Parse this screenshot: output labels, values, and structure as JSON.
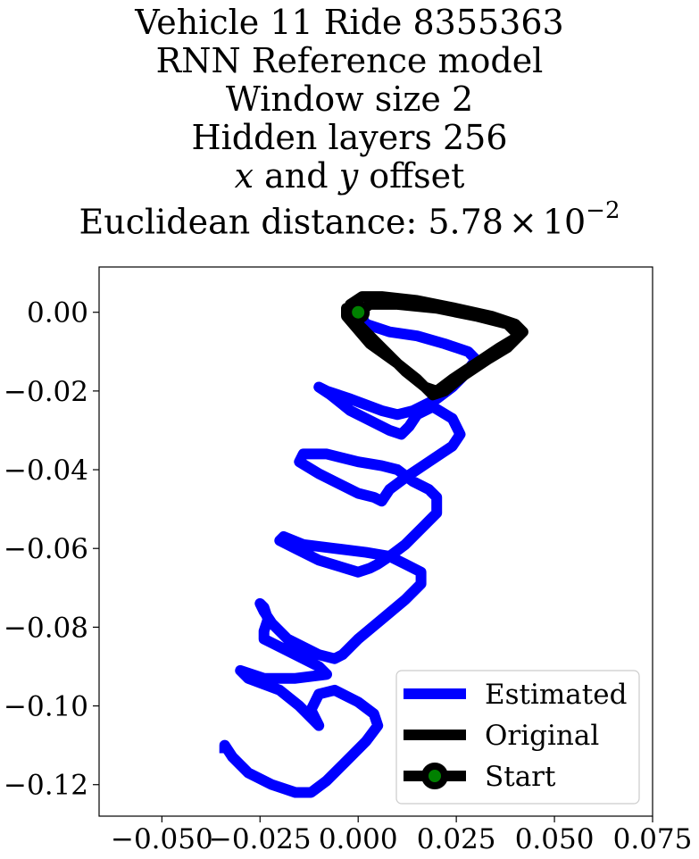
{
  "chart_data": {
    "type": "line",
    "title_lines": [
      "Vehicle 11 Ride 8355363",
      "RNN Reference model",
      "Window size 2",
      "Hidden layers 256"
    ],
    "title_offset": {
      "x": "x",
      "and": " and ",
      "y": "y",
      "suffix": " offset"
    },
    "title_distance": {
      "prefix": "Euclidean distance: ",
      "mantissa": "5.78",
      "times": "×",
      "base": "10",
      "exponent": "−2"
    },
    "xlim": [
      -0.066,
      0.075
    ],
    "ylim": [
      -0.128,
      0.0115
    ],
    "xticks": [
      -0.05,
      -0.025,
      0.0,
      0.025,
      0.05,
      0.075
    ],
    "xtick_labels": [
      "−0.050",
      "−0.025",
      "0.000",
      "0.025",
      "0.050",
      "0.075"
    ],
    "yticks": [
      0.0,
      -0.02,
      -0.04,
      -0.06,
      -0.08,
      -0.1,
      -0.12
    ],
    "ytick_labels": [
      "0.00",
      "−0.02",
      "−0.04",
      "−0.06",
      "−0.08",
      "−0.10",
      "−0.12"
    ],
    "grid": false,
    "legend_placement": "bottom-right",
    "series": [
      {
        "name": "Estimated",
        "color": "#0000ff",
        "points": [
          [
            0.0,
            0.0
          ],
          [
            0.002,
            -0.003
          ],
          [
            0.008,
            -0.005
          ],
          [
            0.015,
            -0.006
          ],
          [
            0.022,
            -0.008
          ],
          [
            0.028,
            -0.01
          ],
          [
            0.03,
            -0.012
          ],
          [
            0.027,
            -0.016
          ],
          [
            0.024,
            -0.019
          ],
          [
            0.02,
            -0.022
          ],
          [
            0.014,
            -0.025
          ],
          [
            0.01,
            -0.026
          ],
          [
            0.006,
            -0.025
          ],
          [
            -0.002,
            -0.022
          ],
          [
            -0.008,
            -0.02
          ],
          [
            -0.01,
            -0.019
          ],
          [
            -0.007,
            -0.021
          ],
          [
            -0.002,
            -0.025
          ],
          [
            0.004,
            -0.028
          ],
          [
            0.008,
            -0.03
          ],
          [
            0.011,
            -0.031
          ],
          [
            0.013,
            -0.029
          ],
          [
            0.015,
            -0.026
          ],
          [
            0.019,
            -0.024
          ],
          [
            0.024,
            -0.027
          ],
          [
            0.026,
            -0.031
          ],
          [
            0.024,
            -0.034
          ],
          [
            0.018,
            -0.038
          ],
          [
            0.012,
            -0.042
          ],
          [
            0.008,
            -0.045
          ],
          [
            0.006,
            -0.048
          ],
          [
            0.004,
            -0.047
          ],
          [
            0.0,
            -0.046
          ],
          [
            -0.01,
            -0.041
          ],
          [
            -0.015,
            -0.038
          ],
          [
            -0.014,
            -0.036
          ],
          [
            -0.008,
            -0.036
          ],
          [
            0.0,
            -0.038
          ],
          [
            0.006,
            -0.039
          ],
          [
            0.01,
            -0.04
          ],
          [
            0.014,
            -0.043
          ],
          [
            0.018,
            -0.045
          ],
          [
            0.02,
            -0.047
          ],
          [
            0.02,
            -0.051
          ],
          [
            0.016,
            -0.055
          ],
          [
            0.012,
            -0.059
          ],
          [
            0.008,
            -0.062
          ],
          [
            0.005,
            -0.064
          ],
          [
            0.003,
            -0.065
          ],
          [
            0.0,
            -0.066
          ],
          [
            -0.01,
            -0.063
          ],
          [
            -0.016,
            -0.06
          ],
          [
            -0.02,
            -0.058
          ],
          [
            -0.019,
            -0.057
          ],
          [
            -0.014,
            -0.059
          ],
          [
            -0.006,
            -0.06
          ],
          [
            0.002,
            -0.061
          ],
          [
            0.008,
            -0.062
          ],
          [
            0.012,
            -0.064
          ],
          [
            0.016,
            -0.066
          ],
          [
            0.016,
            -0.069
          ],
          [
            0.012,
            -0.073
          ],
          [
            0.006,
            -0.078
          ],
          [
            0.0,
            -0.083
          ],
          [
            -0.004,
            -0.087
          ],
          [
            -0.006,
            -0.088
          ],
          [
            -0.01,
            -0.087
          ],
          [
            -0.018,
            -0.083
          ],
          [
            -0.022,
            -0.079
          ],
          [
            -0.024,
            -0.076
          ],
          [
            -0.025,
            -0.074
          ],
          [
            -0.024,
            -0.075
          ],
          [
            -0.023,
            -0.078
          ],
          [
            -0.024,
            -0.081
          ],
          [
            -0.024,
            -0.083
          ],
          [
            -0.022,
            -0.084
          ],
          [
            -0.016,
            -0.087
          ],
          [
            -0.01,
            -0.09
          ],
          [
            -0.008,
            -0.092
          ],
          [
            -0.016,
            -0.093
          ],
          [
            -0.024,
            -0.093
          ],
          [
            -0.03,
            -0.091
          ],
          [
            -0.028,
            -0.093
          ],
          [
            -0.02,
            -0.096
          ],
          [
            -0.015,
            -0.1
          ],
          [
            -0.012,
            -0.103
          ],
          [
            -0.01,
            -0.105
          ],
          [
            -0.012,
            -0.101
          ],
          [
            -0.01,
            -0.097
          ],
          [
            -0.006,
            -0.096
          ],
          [
            0.0,
            -0.099
          ],
          [
            0.004,
            -0.102
          ],
          [
            0.005,
            -0.105
          ],
          [
            0.002,
            -0.109
          ],
          [
            -0.003,
            -0.114
          ],
          [
            -0.008,
            -0.119
          ],
          [
            -0.012,
            -0.122
          ],
          [
            -0.016,
            -0.122
          ],
          [
            -0.022,
            -0.12
          ],
          [
            -0.028,
            -0.117
          ],
          [
            -0.032,
            -0.113
          ],
          [
            -0.034,
            -0.11
          ],
          [
            -0.034,
            -0.112
          ]
        ]
      },
      {
        "name": "Original",
        "color": "#000000",
        "points": [
          [
            0.0,
            0.0
          ],
          [
            -0.003,
            0.001
          ],
          [
            -0.003,
            -0.001
          ],
          [
            0.003,
            -0.008
          ],
          [
            0.01,
            -0.013
          ],
          [
            0.015,
            -0.017
          ],
          [
            0.019,
            -0.021
          ],
          [
            0.022,
            -0.02
          ],
          [
            0.027,
            -0.016
          ],
          [
            0.033,
            -0.012
          ],
          [
            0.038,
            -0.009
          ],
          [
            0.042,
            -0.005
          ],
          [
            0.04,
            -0.003
          ],
          [
            0.034,
            -0.001
          ],
          [
            0.025,
            0.001
          ],
          [
            0.015,
            0.003
          ],
          [
            0.006,
            0.004
          ],
          [
            0.001,
            0.004
          ],
          [
            -0.002,
            0.002
          ],
          [
            -0.001,
            -0.002
          ],
          [
            0.005,
            -0.008
          ],
          [
            0.012,
            -0.015
          ],
          [
            0.017,
            -0.019
          ],
          [
            0.02,
            -0.02
          ],
          [
            0.024,
            -0.017
          ],
          [
            0.03,
            -0.013
          ],
          [
            0.036,
            -0.009
          ],
          [
            0.041,
            -0.006
          ],
          [
            0.038,
            -0.003
          ],
          [
            0.03,
            -0.001
          ],
          [
            0.02,
            0.001
          ],
          [
            0.01,
            0.002
          ],
          [
            0.003,
            0.002
          ],
          [
            0.0,
            0.0
          ]
        ]
      }
    ],
    "start_label": "Start",
    "start_point": [
      0.0,
      0.0
    ],
    "start_color": "#008000"
  }
}
